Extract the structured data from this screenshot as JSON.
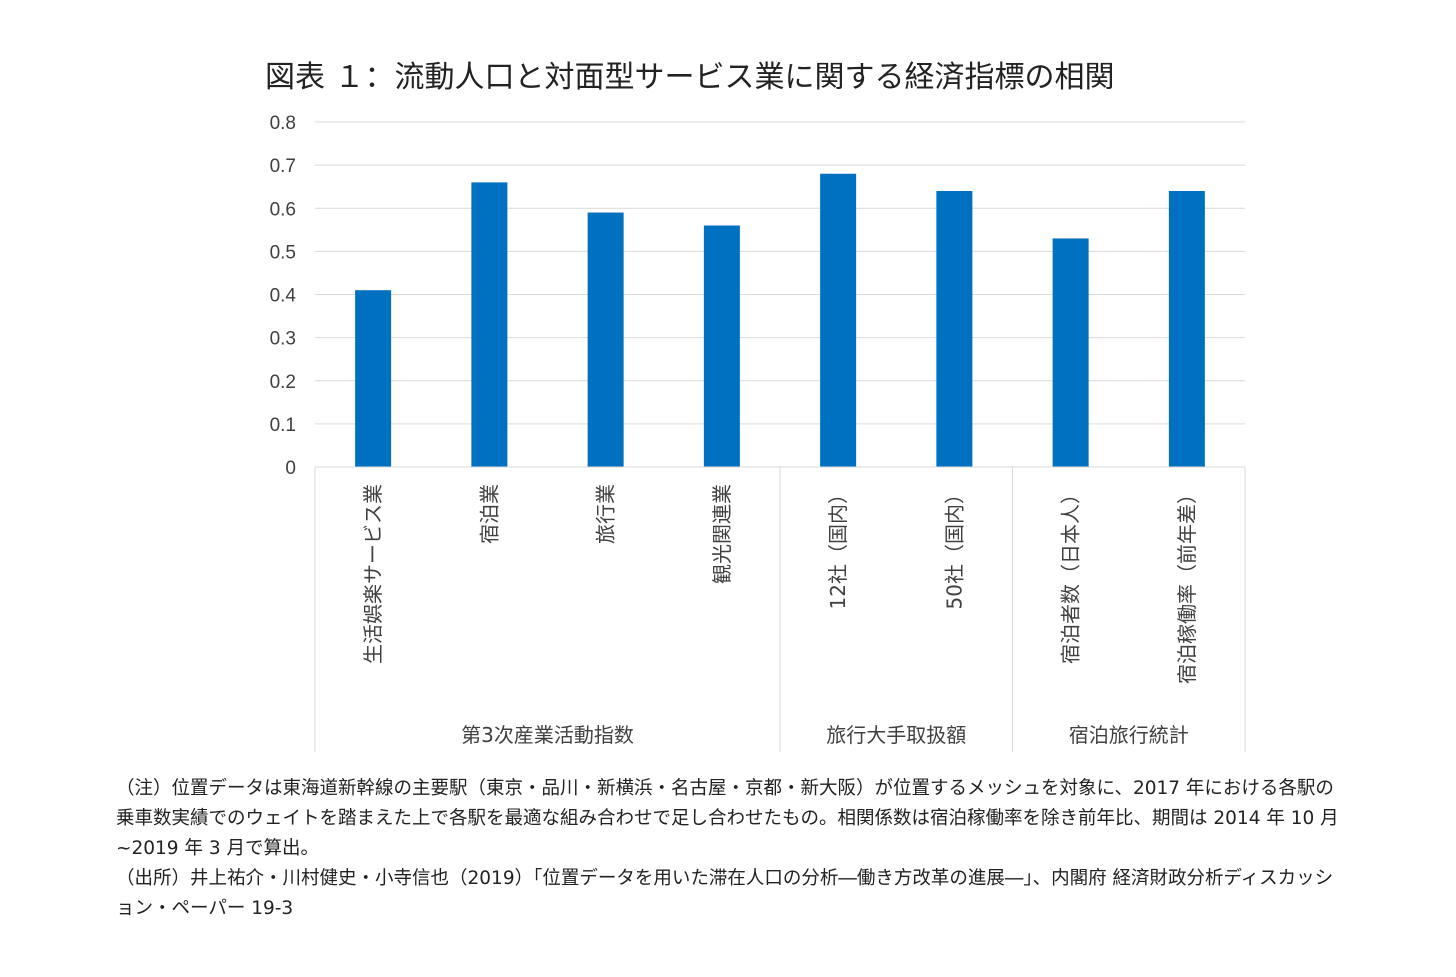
{
  "chart_data": {
    "type": "bar",
    "title": "図表 １：流動人口と対面型サービス業に関する経済指標の相関",
    "categories": [
      "生活娯楽サービス業",
      "宿泊業",
      "旅行業",
      "観光関連業",
      "12社（国内）",
      "50社（国内）",
      "宿泊者数（日本人）",
      "宿泊稼働率（前年差）"
    ],
    "groups": [
      {
        "label": "第3次産業活動指数",
        "count": 4
      },
      {
        "label": "旅行大手取扱額",
        "count": 2
      },
      {
        "label": "宿泊旅行統計",
        "count": 2
      }
    ],
    "values": [
      0.41,
      0.66,
      0.59,
      0.56,
      0.68,
      0.64,
      0.53,
      0.64
    ],
    "ylim": [
      0,
      0.8
    ],
    "yticks": [
      "0",
      "0.1",
      "0.2",
      "0.3",
      "0.4",
      "0.5",
      "0.6",
      "0.7",
      "0.8"
    ],
    "xlabel": "",
    "ylabel": "",
    "grid": true,
    "bar_color": "#0070C0",
    "grid_color": "#D9D9D9"
  },
  "notes": {
    "note": "（注）位置データは東海道新幹線の主要駅（東京・品川・新横浜・名古屋・京都・新大阪）が位置するメッシュを対象に、2017 年における各駅の乗車数実績でのウェイトを踏まえた上で各駅を最適な組み合わせで足し合わせたもの。相関係数は宿泊稼働率を除き前年比、期間は 2014 年 10 月~2019 年 3 月で算出。",
    "source": "（出所）井上祐介・川村健史・小寺信也（2019）「位置データを用いた滞在人口の分析―働き方改革の進展―」、内閣府 経済財政分析ディスカッション・ペーパー 19-3"
  }
}
